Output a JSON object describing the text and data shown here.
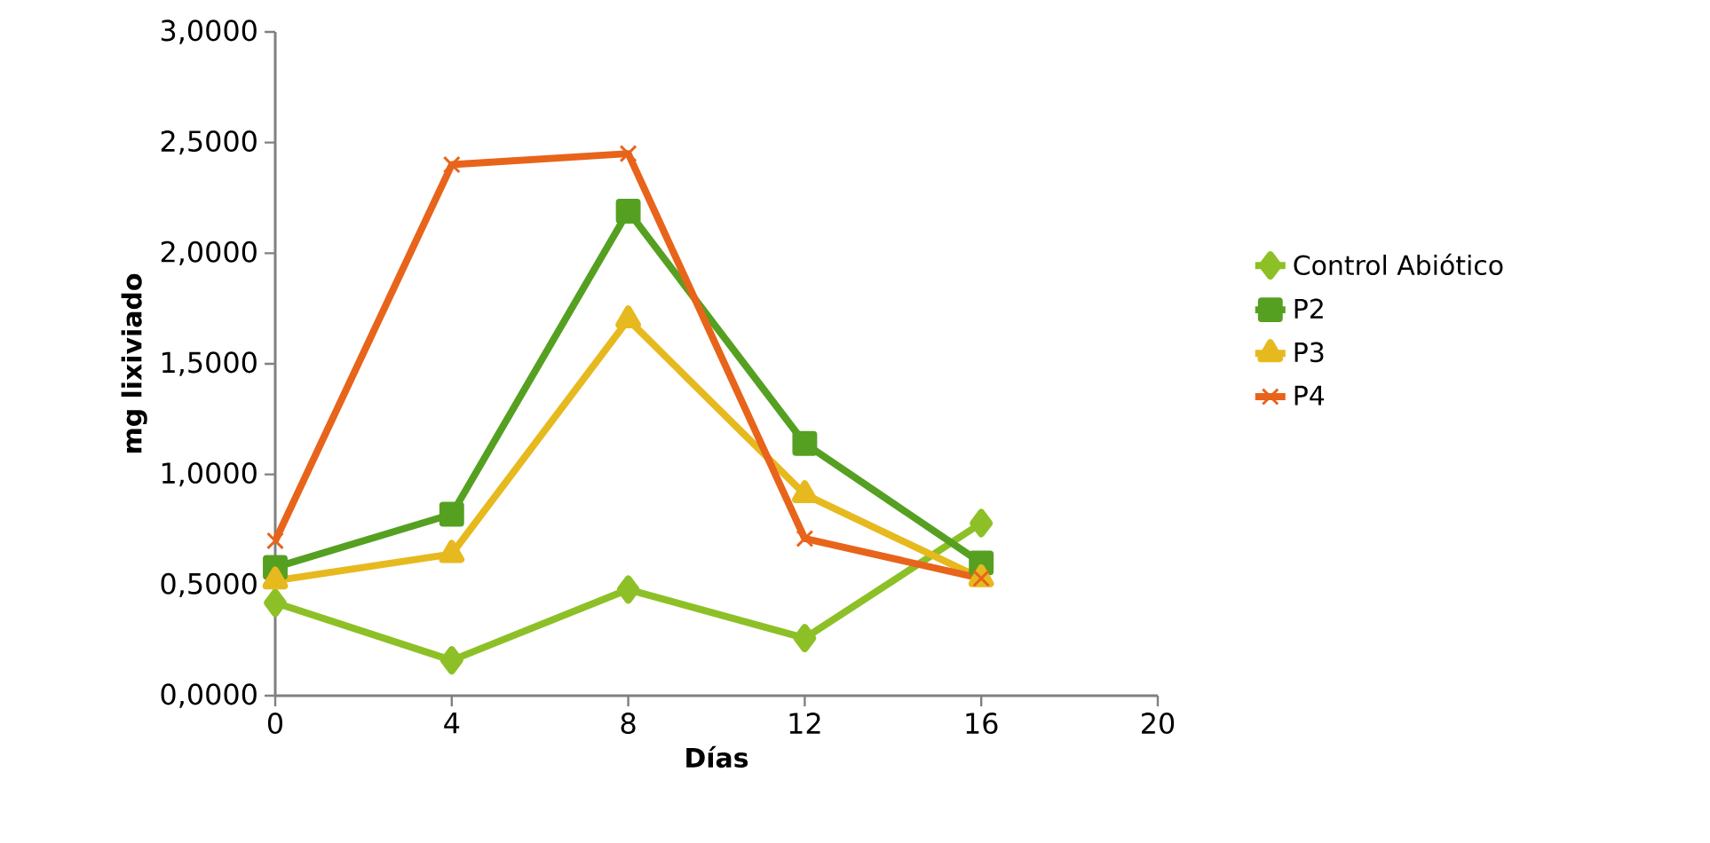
{
  "chart_data": {
    "type": "line",
    "xlabel": "Días",
    "ylabel": "mg lixiviado",
    "x": [
      0,
      4,
      8,
      12,
      16
    ],
    "series": [
      {
        "name": "Control Abiótico",
        "color": "#8dc026",
        "marker": "diamond",
        "values": [
          0.42,
          0.16,
          0.48,
          0.26,
          0.78
        ]
      },
      {
        "name": "P2",
        "color": "#55a021",
        "marker": "square",
        "values": [
          0.58,
          0.82,
          2.19,
          1.14,
          0.6
        ]
      },
      {
        "name": "P3",
        "color": "#e6b91e",
        "marker": "triangle",
        "values": [
          0.52,
          0.64,
          1.7,
          0.91,
          0.53
        ]
      },
      {
        "name": "P4",
        "color": "#e8641b",
        "marker": "cross",
        "values": [
          0.7,
          2.4,
          2.45,
          0.71,
          0.53
        ]
      }
    ],
    "xlim": [
      0,
      20
    ],
    "xticks": [
      0,
      4,
      8,
      12,
      16,
      20
    ],
    "ylim": [
      0,
      3
    ],
    "yticks": [
      {
        "value": 0,
        "label": "0,0000"
      },
      {
        "value": 0.5,
        "label": "0,5000"
      },
      {
        "value": 1,
        "label": "1,0000"
      },
      {
        "value": 1.5,
        "label": "1,5000"
      },
      {
        "value": 2,
        "label": "2,0000"
      },
      {
        "value": 2.5,
        "label": "2,5000"
      },
      {
        "value": 3,
        "label": "3,0000"
      }
    ],
    "grid": false,
    "legend": "right",
    "line_style": "solid"
  }
}
